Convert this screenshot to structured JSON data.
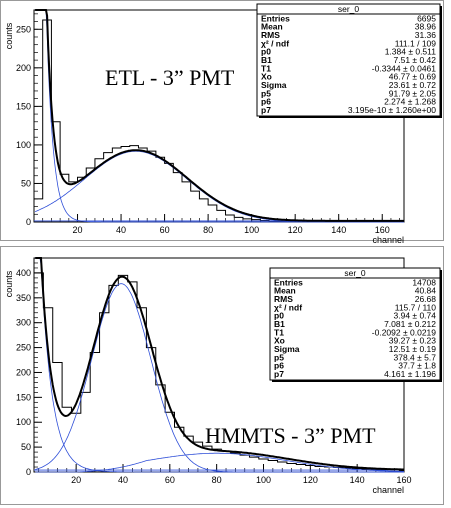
{
  "chart_data": [
    {
      "type": "histogram",
      "title": "ser_0",
      "overlay_text": "ETL - 3” PMT",
      "ylabel": "counts",
      "xlabel": "channel",
      "xlim": [
        0,
        170
      ],
      "ylim": [
        0,
        275
      ],
      "xticks": [
        20,
        40,
        60,
        80,
        100,
        120,
        140,
        160
      ],
      "yticks": [
        0,
        50,
        100,
        150,
        200,
        250
      ],
      "stats": [
        {
          "label": "Entries",
          "value": "6695"
        },
        {
          "label": "Mean",
          "value": "38.96"
        },
        {
          "label": "RMS",
          "value": "31.36"
        },
        {
          "label": "χ² / ndf",
          "value": "111.1 / 109"
        },
        {
          "label": "p0",
          "value": "1.384 ± 0.511"
        },
        {
          "label": "B1",
          "value": "7.51 ± 0.42"
        },
        {
          "label": "T1",
          "value": "-0.3344 ± 0.0461"
        },
        {
          "label": "Xo",
          "value": "46.77 ± 0.69"
        },
        {
          "label": "Sigma",
          "value": "23.61 ± 0.72"
        },
        {
          "label": "p5",
          "value": "91.79 ± 2.05"
        },
        {
          "label": "p6",
          "value": "2.274 ± 1.268"
        },
        {
          "label": "p7",
          "value": "3.195e-10 ± 1.260e+00"
        }
      ],
      "fit": {
        "p0": 1.384,
        "B1": 7.51,
        "T1": -0.3344,
        "Xo": 46.77,
        "Sigma": 23.61,
        "p5": 91.79,
        "p6": 2.274
      },
      "series": [
        {
          "x": [
            0,
            4,
            8,
            12,
            16,
            20,
            24,
            28,
            32,
            36,
            40,
            44,
            48,
            52,
            56,
            60,
            64,
            68,
            72,
            76,
            80,
            84,
            88,
            92,
            96,
            100,
            104,
            108,
            112,
            116,
            120,
            124,
            128,
            132,
            136,
            140,
            144,
            148,
            152,
            156,
            160
          ],
          "y": [
            30,
            262,
            130,
            62,
            52,
            58,
            70,
            82,
            90,
            96,
            98,
            99,
            96,
            92,
            84,
            76,
            64,
            52,
            40,
            30,
            22,
            15,
            9,
            6,
            4,
            3,
            2,
            1,
            1,
            0,
            0,
            0,
            0,
            0,
            0,
            0,
            0,
            0,
            0,
            0,
            0
          ]
        }
      ]
    },
    {
      "type": "histogram",
      "title": "ser_0",
      "overlay_text": "HMMTS - 3” PMT",
      "ylabel": "counts",
      "xlabel": "channel",
      "xlim": [
        2,
        160
      ],
      "ylim": [
        0,
        430
      ],
      "xticks": [
        20,
        40,
        60,
        80,
        100,
        120,
        140,
        160
      ],
      "yticks": [
        0,
        50,
        100,
        150,
        200,
        250,
        300,
        350,
        400
      ],
      "stats": [
        {
          "label": "Entries",
          "value": "14708"
        },
        {
          "label": "Mean",
          "value": "40.84"
        },
        {
          "label": "RMS",
          "value": "26.68"
        },
        {
          "label": "χ² / ndf",
          "value": "115.7 / 110"
        },
        {
          "label": "p0",
          "value": "3.94 ± 0.74"
        },
        {
          "label": "B1",
          "value": "7.081 ± 0.212"
        },
        {
          "label": "T1",
          "value": "-0.2092 ± 0.0219"
        },
        {
          "label": "Xo",
          "value": "39.27 ± 0.23"
        },
        {
          "label": "Sigma",
          "value": "12.51 ± 0.19"
        },
        {
          "label": "p5",
          "value": "378.4 ± 5.7"
        },
        {
          "label": "p6",
          "value": "37.7 ± 1.8"
        },
        {
          "label": "p7",
          "value": "4.161 ± 1.196"
        }
      ],
      "fit": {
        "p0": 3.94,
        "B1": 7.081,
        "T1": -0.2092,
        "Xo": 39.27,
        "Sigma": 12.51,
        "p5": 378.4,
        "p6": 37.7,
        "p7": 4.161
      },
      "series": [
        {
          "x": [
            2,
            6,
            10,
            14,
            18,
            22,
            26,
            30,
            34,
            38,
            42,
            46,
            50,
            54,
            58,
            62,
            66,
            70,
            74,
            78,
            82,
            86,
            90,
            94,
            98,
            102,
            106,
            110,
            114,
            118,
            122,
            126,
            130,
            134,
            138,
            142,
            146,
            150,
            154,
            158
          ],
          "y": [
            400,
            330,
            220,
            130,
            118,
            160,
            240,
            320,
            375,
            395,
            382,
            330,
            250,
            175,
            120,
            90,
            72,
            60,
            52,
            46,
            42,
            38,
            34,
            30,
            26,
            23,
            20,
            17,
            15,
            13,
            11,
            10,
            9,
            8,
            7,
            6,
            5,
            5,
            4,
            3
          ]
        }
      ]
    }
  ]
}
